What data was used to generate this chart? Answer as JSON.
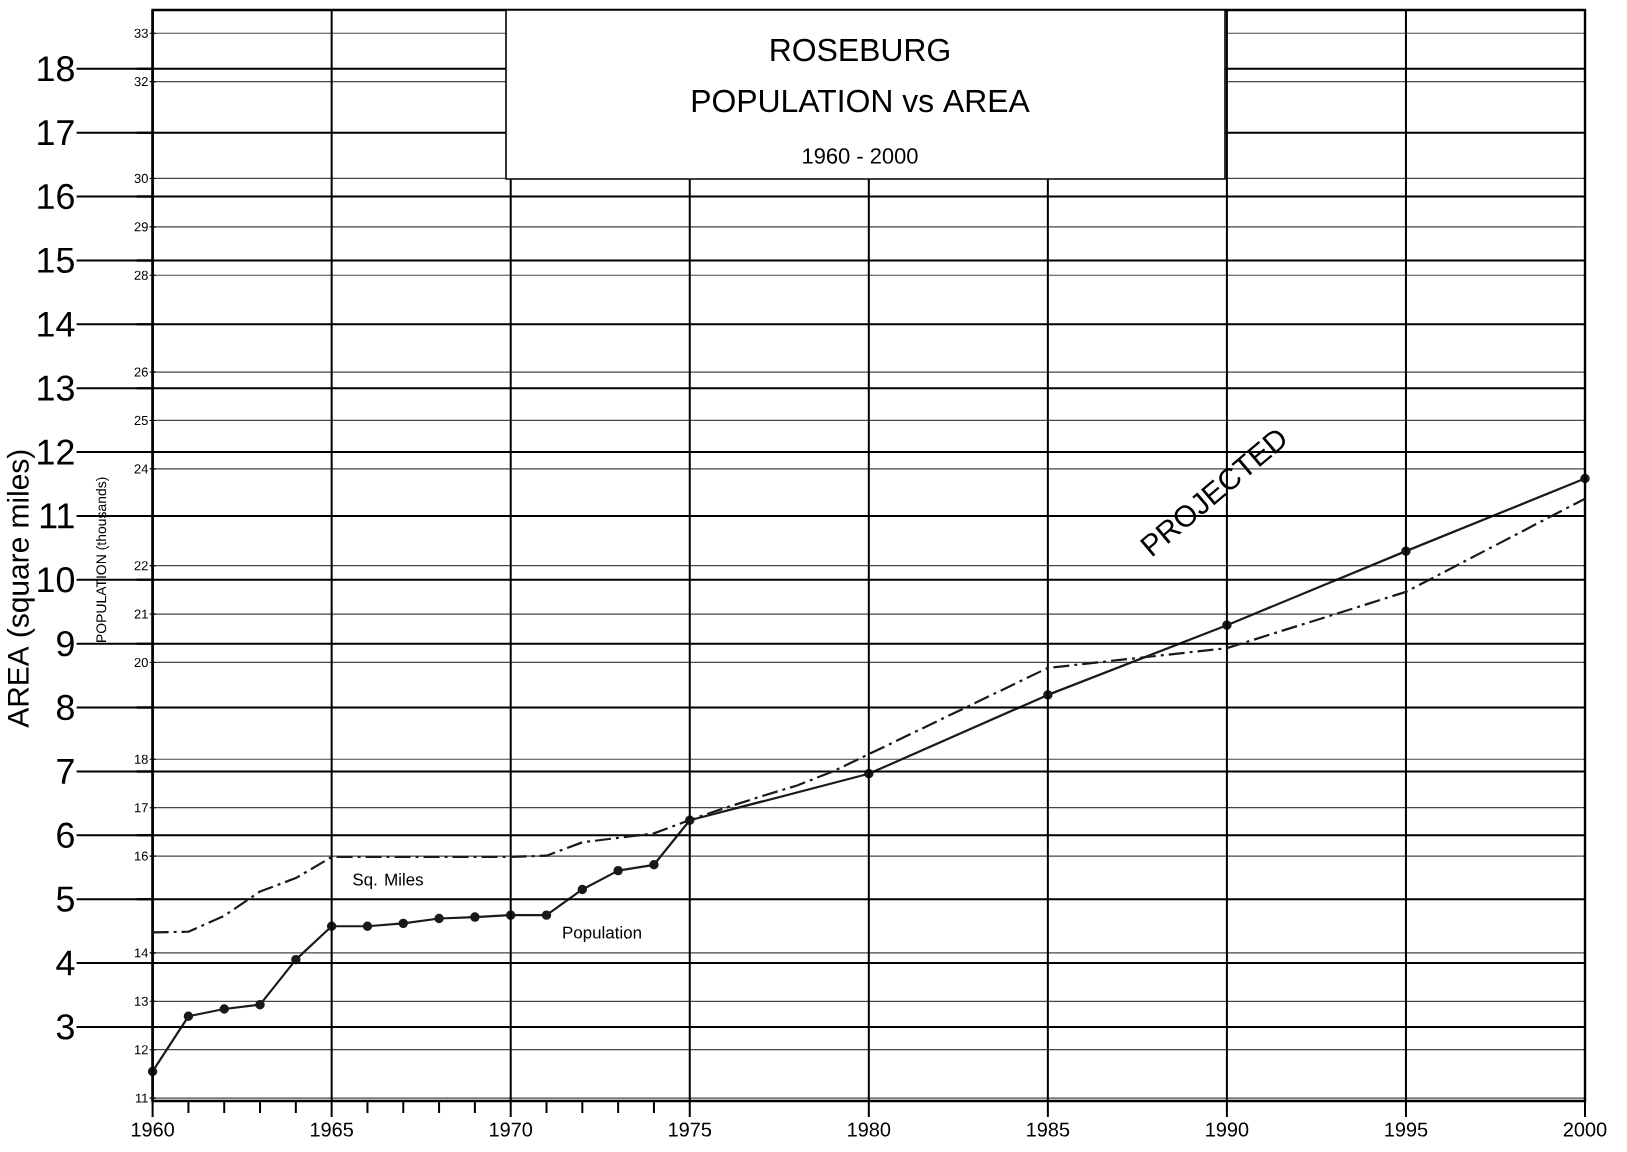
{
  "chart_data": {
    "type": "line",
    "title": "ROSEBURG",
    "subtitle": "POPULATION vs AREA",
    "annotations": [
      "1960 - 2000",
      "PROJECTED"
    ],
    "ylabel": "AREA (square miles)",
    "y2label": "POPULATION (thousands)",
    "xlim": [
      1960,
      2000
    ],
    "xticks": [
      1960,
      {
        "value": 1961,
        "label": null
      },
      {
        "value": 1962,
        "label": null
      },
      {
        "value": 1963,
        "label": null
      },
      {
        "value": 1964,
        "label": null
      },
      1965,
      {
        "value": 1966,
        "label": null
      },
      {
        "value": 1967,
        "label": null
      },
      {
        "value": 1968,
        "label": null
      },
      {
        "value": 1969,
        "label": null
      },
      1970,
      {
        "value": 1971,
        "label": null
      },
      {
        "value": 1972,
        "label": null
      },
      {
        "value": 1973,
        "label": null
      },
      {
        "value": 1974,
        "label": null
      },
      1975,
      1980,
      1985,
      1990,
      1995,
      2000
    ],
    "ylim": [
      1.84,
      18.92
    ],
    "yticks": [
      3,
      4,
      5,
      6,
      7,
      8,
      9,
      10,
      11,
      12,
      13,
      14,
      15,
      16,
      17,
      18
    ],
    "y2lim": [
      10.94,
      33.48
    ],
    "y2ticks": [
      11,
      12,
      13,
      14,
      16,
      17,
      18,
      20,
      21,
      22,
      24,
      25,
      26,
      28,
      29,
      30,
      32,
      33
    ],
    "grid": true,
    "series": [
      {
        "name": "Sq. Miles",
        "color": "#1a1a1a",
        "line_style": "dashdot",
        "marker": "none",
        "x": [
          1960,
          1961,
          1962,
          1963,
          1964,
          1965,
          1966,
          1967,
          1968,
          1969,
          1970,
          1971,
          1972,
          1973,
          1974,
          1975,
          1976,
          1977,
          1978,
          1979,
          1980,
          1985,
          1990,
          1995,
          2000
        ],
        "values": [
          4.48,
          4.49,
          4.74,
          5.12,
          5.33,
          5.66,
          5.66,
          5.66,
          5.66,
          5.66,
          5.66,
          5.68,
          5.89,
          5.96,
          6.03,
          6.24,
          6.43,
          6.61,
          6.78,
          7.0,
          7.27,
          8.62,
          8.93,
          9.81,
          11.27
        ]
      },
      {
        "name": "Population",
        "color": "#1a1a1a",
        "line_style": "solid",
        "marker": "circle",
        "axis": "y2",
        "x": [
          1960,
          1961,
          1962,
          1963,
          1964,
          1965,
          1966,
          1967,
          1968,
          1969,
          1970,
          1971,
          1972,
          1973,
          1974,
          1975,
          1980,
          1985,
          1990,
          1995,
          2000
        ],
        "values": [
          11.55,
          12.69,
          12.84,
          12.93,
          13.86,
          14.55,
          14.55,
          14.61,
          14.71,
          14.74,
          14.78,
          14.78,
          15.31,
          15.7,
          15.82,
          16.74,
          17.7,
          19.33,
          20.77,
          22.3,
          23.8
        ]
      }
    ]
  }
}
